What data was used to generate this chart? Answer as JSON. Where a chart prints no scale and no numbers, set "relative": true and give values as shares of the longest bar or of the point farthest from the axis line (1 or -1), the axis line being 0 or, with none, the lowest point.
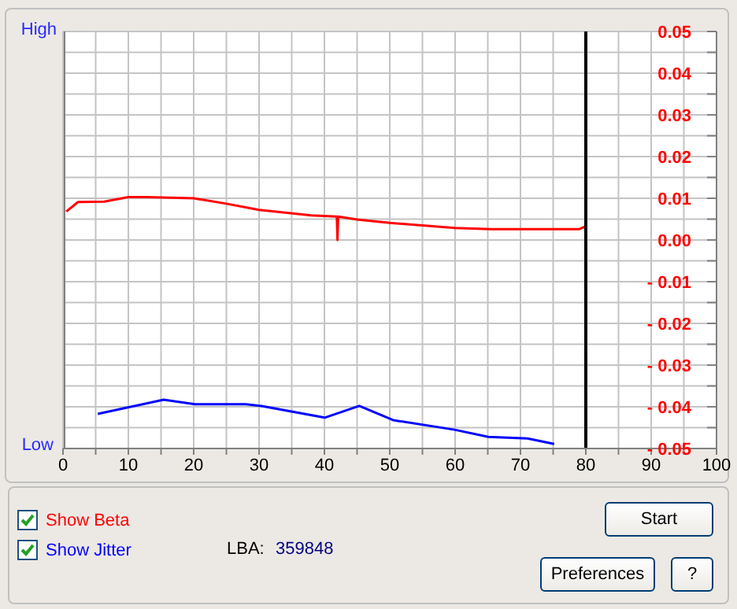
{
  "chart_data": [
    {
      "type": "line",
      "xlim": [
        0,
        100
      ],
      "xticks": [
        0,
        {
          "value": 5,
          "label": null
        },
        10,
        {
          "value": 15,
          "label": null
        },
        20,
        {
          "value": 25,
          "label": null
        },
        30,
        {
          "value": 35,
          "label": null
        },
        40,
        {
          "value": 45,
          "label": null
        },
        50,
        {
          "value": 55,
          "label": null
        },
        60,
        {
          "value": 65,
          "label": null
        },
        70,
        {
          "value": 75,
          "label": null
        },
        80,
        {
          "value": 85,
          "label": null
        },
        90,
        {
          "value": 95,
          "label": null
        },
        100
      ],
      "ylim": [
        -0.05,
        0.05
      ],
      "yticks": [
        {
          "value": -0.05,
          "label": "- 0.05"
        },
        {
          "value": -0.045,
          "label": null
        },
        {
          "value": -0.04,
          "label": "- 0.04"
        },
        {
          "value": -0.035,
          "label": null
        },
        {
          "value": -0.03,
          "label": "- 0.03"
        },
        {
          "value": -0.025,
          "label": null
        },
        {
          "value": -0.02,
          "label": "- 0.02"
        },
        {
          "value": -0.015,
          "label": null
        },
        {
          "value": -0.01,
          "label": "- 0.01"
        },
        {
          "value": -0.005,
          "label": null
        },
        {
          "value": 0,
          "label": "0.00"
        },
        {
          "value": 0.005,
          "label": null
        },
        {
          "value": 0.01,
          "label": "0.01"
        },
        {
          "value": 0.015,
          "label": null
        },
        {
          "value": 0.02,
          "label": "0.02"
        },
        {
          "value": 0.025,
          "label": null
        },
        {
          "value": 0.03,
          "label": "0.03"
        },
        {
          "value": 0.035,
          "label": null
        },
        {
          "value": 0.04,
          "label": "0.04"
        },
        {
          "value": 0.045,
          "label": null
        },
        {
          "value": 0.05,
          "label": "0.05"
        }
      ],
      "grid": true,
      "legend": "bottom left",
      "series": [
        {
          "name": "Show Beta",
          "color": "#ff0000",
          "x": [
            0.5,
            2.3,
            6.3,
            10,
            12.8,
            20,
            25,
            30,
            38,
            41.9,
            42,
            42.1,
            45,
            50,
            60,
            65.5,
            79,
            80
          ],
          "values": [
            0.0068,
            0.0091,
            0.0092,
            0.0103,
            0.0103,
            0.01,
            0.0087,
            0.0072,
            0.0059,
            0.0056,
            0,
            0.0056,
            0.0049,
            0.0041,
            0.0029,
            0.0026,
            0.0026,
            0.0033
          ]
        }
      ],
      "ref_lines": [
        {
          "axis": "x",
          "value": 80,
          "color": "#000000"
        }
      ],
      "annotations": [
        "LBA:",
        "359848",
        "Start",
        "Preferences",
        "?"
      ]
    },
    {
      "type": "line",
      "relative": true,
      "xlim": [
        0,
        100
      ],
      "xticks": [
        0,
        {
          "value": 5,
          "label": null
        },
        10,
        {
          "value": 15,
          "label": null
        },
        20,
        {
          "value": 25,
          "label": null
        },
        30,
        {
          "value": 35,
          "label": null
        },
        40,
        {
          "value": 45,
          "label": null
        },
        50,
        {
          "value": 55,
          "label": null
        },
        60,
        {
          "value": 65,
          "label": null
        },
        70,
        {
          "value": 75,
          "label": null
        },
        80,
        {
          "value": 85,
          "label": null
        },
        90,
        {
          "value": 95,
          "label": null
        },
        100
      ],
      "tick_labels": false,
      "legend": "bottom left",
      "series": [
        {
          "name": "Show Jitter",
          "color": "#0000ff",
          "x": [
            5.1,
            15.2,
            20,
            27.8,
            30.2,
            39.9,
            45.2,
            50.4,
            59.8,
            65,
            71,
            75.1
          ],
          "values": [
            0.709,
            1,
            0.906,
            0.906,
            0.872,
            0.632,
            0.872,
            0.581,
            0.385,
            0.239,
            0.205,
            0.094
          ]
        }
      ],
      "annotations": [
        "High",
        "Low"
      ]
    }
  ]
}
